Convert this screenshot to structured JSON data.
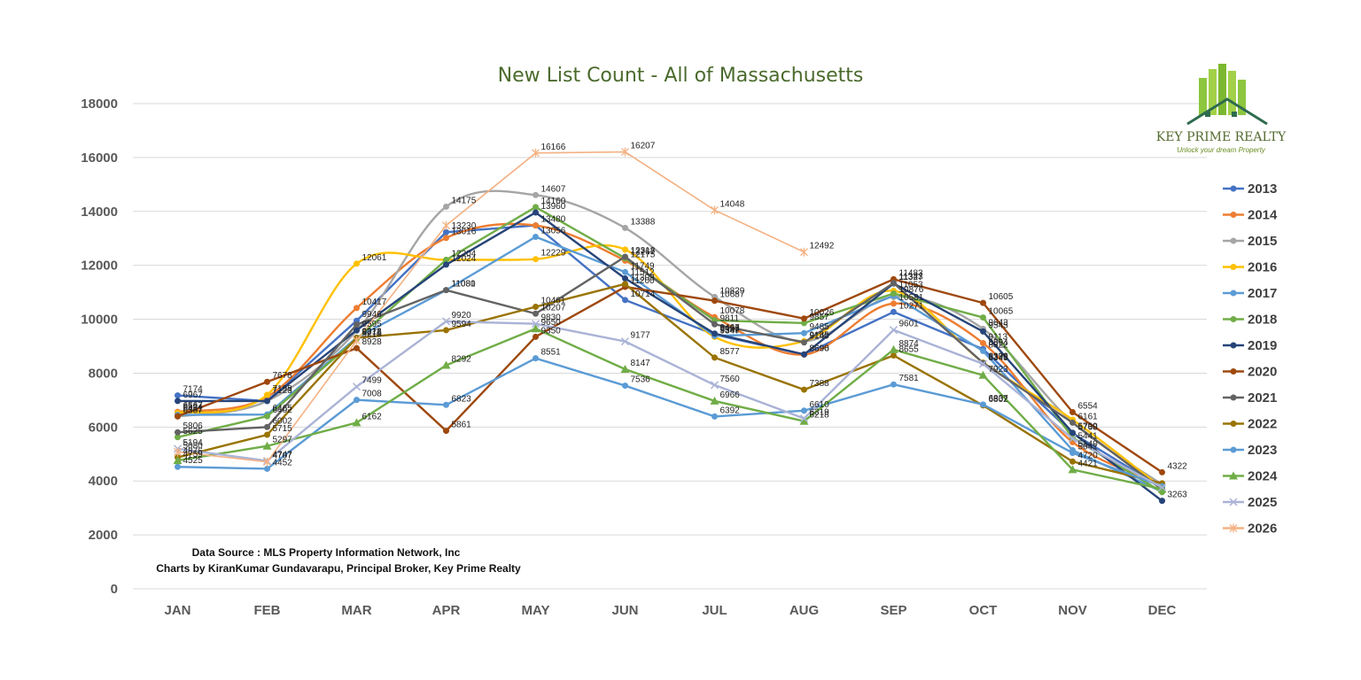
{
  "chart_data": {
    "type": "line",
    "title": "New List Count - All of Massachusetts",
    "xlabel": "",
    "ylabel": "",
    "categories": [
      "JAN",
      "FEB",
      "MAR",
      "APR",
      "MAY",
      "JUN",
      "JUL",
      "AUG",
      "SEP",
      "OCT",
      "NOV",
      "DEC"
    ],
    "ylim": [
      0,
      18000
    ],
    "yticks": [
      0,
      2000,
      4000,
      6000,
      8000,
      10000,
      12000,
      14000,
      16000,
      18000
    ],
    "grid": true,
    "legend_position": "right",
    "series": [
      {
        "name": "2013",
        "color": "#4472c4",
        "marker": "circle",
        "smooth": false,
        "values": [
          7174,
          6967,
          9946,
          13230,
          13480,
          10714,
          9433,
          8690,
          10271,
          8894,
          5768,
          3748
        ],
        "labels": [
          7174,
          null,
          9946,
          13230,
          13480,
          10714,
          9433,
          8690,
          10271,
          8894,
          5768,
          null
        ]
      },
      {
        "name": "2014",
        "color": "#ed7d31",
        "marker": "circle",
        "smooth": true,
        "values": [
          6567,
          7123,
          10417,
          13016,
          13480,
          12175,
          10078,
          8690,
          10581,
          9113,
          5441,
          3904
        ],
        "labels": [
          6567,
          7123,
          10417,
          13016,
          null,
          12175,
          10078,
          null,
          10581,
          9113,
          5441,
          null
        ]
      },
      {
        "name": "2015",
        "color": "#a5a5a5",
        "marker": "circle",
        "smooth": true,
        "values": [
          6387,
          6967,
          9571,
          14175,
          14607,
          13388,
          10829,
          9187,
          10826,
          9643,
          6174,
          3869
        ],
        "labels": [
          6387,
          null,
          null,
          14175,
          14607,
          13388,
          10829,
          null,
          null,
          9643,
          null,
          null
        ]
      },
      {
        "name": "2016",
        "color": "#ffc000",
        "marker": "circle",
        "smooth": true,
        "values": [
          6524,
          7198,
          12061,
          12204,
          12229,
          12585,
          9347,
          9185,
          11053,
          8398,
          6274,
          3740
        ],
        "labels": [
          6524,
          7198,
          12061,
          12204,
          12229,
          null,
          9347,
          9185,
          11053,
          8398,
          null,
          null
        ]
      },
      {
        "name": "2017",
        "color": "#5b9bd5",
        "marker": "circle",
        "smooth": false,
        "values": [
          6451,
          6465,
          9318,
          11081,
          13056,
          11749,
          9382,
          9485,
          10876,
          8822,
          5140,
          3600
        ],
        "labels": [
          6451,
          6465,
          9318,
          11081,
          13056,
          11749,
          9382,
          9485,
          10876,
          8822,
          5140,
          null
        ]
      },
      {
        "name": "2018",
        "color": "#70ad47",
        "marker": "circle",
        "smooth": false,
        "values": [
          5625,
          6402,
          9271,
          12204,
          14160,
          12267,
          9960,
          9857,
          10956,
          10065,
          5608,
          3586
        ],
        "labels": [
          5625,
          6402,
          9271,
          null,
          14160,
          12267,
          null,
          9857,
          null,
          10065,
          null,
          null
        ]
      },
      {
        "name": "2019",
        "color": "#264478",
        "marker": "circle",
        "smooth": false,
        "values": [
          6967,
          6967,
          9595,
          12024,
          13960,
          11512,
          9467,
          8696,
          11327,
          9545,
          5790,
          3263
        ],
        "labels": [
          6967,
          null,
          9595,
          12024,
          13960,
          11512,
          9467,
          8696,
          11327,
          9545,
          5790,
          3263
        ]
      },
      {
        "name": "2020",
        "color": "#9e480e",
        "marker": "circle",
        "smooth": false,
        "values": [
          6402,
          7678,
          8928,
          5861,
          9350,
          11200,
          10687,
          10026,
          11483,
          10605,
          6554,
          4322
        ],
        "labels": [
          null,
          7678,
          8928,
          5861,
          9350,
          11200,
          10687,
          10026,
          11483,
          10605,
          6554,
          4322
        ]
      },
      {
        "name": "2021",
        "color": "#636363",
        "marker": "circle",
        "smooth": false,
        "values": [
          5806,
          6002,
          9800,
          11080,
          10207,
          12318,
          9811,
          9140,
          11343,
          8379,
          6161,
          3685
        ],
        "labels": [
          5806,
          6002,
          null,
          11080,
          10207,
          12318,
          9811,
          9140,
          11343,
          8379,
          6161,
          null
        ]
      },
      {
        "name": "2022",
        "color": "#997300",
        "marker": "circle",
        "smooth": false,
        "values": [
          4876,
          5715,
          9312,
          9594,
          10461,
          11309,
          8577,
          7388,
          8655,
          6802,
          4720,
          3912
        ],
        "labels": [
          4876,
          5715,
          9312,
          9594,
          10461,
          11309,
          8577,
          7388,
          8655,
          6802,
          4720,
          null
        ]
      },
      {
        "name": "2023",
        "color": "#5b9bd5",
        "marker": "circle",
        "smooth": false,
        "values": [
          4525,
          4452,
          7008,
          6823,
          8551,
          7536,
          6392,
          6610,
          7581,
          6837,
          5041,
          3801
        ],
        "labels": [
          4525,
          4452,
          7008,
          6823,
          8551,
          7536,
          6392,
          6610,
          7581,
          6837,
          5041,
          null
        ]
      },
      {
        "name": "2024",
        "color": "#70ad47",
        "marker": "triangle",
        "smooth": false,
        "values": [
          4759,
          5297,
          6162,
          8292,
          9650,
          8147,
          6966,
          6218,
          8874,
          7923,
          4421,
          3700
        ],
        "labels": [
          4759,
          5297,
          6162,
          8292,
          9650,
          8147,
          6966,
          6218,
          8874,
          7923,
          4421,
          null
        ]
      },
      {
        "name": "2025",
        "color": "#aab3d6",
        "marker": "x",
        "smooth": false,
        "values": [
          5194,
          4747,
          7499,
          9920,
          9830,
          9177,
          7560,
          6319,
          9601,
          8345,
          5570,
          3760
        ],
        "labels": [
          5194,
          4747,
          7499,
          9920,
          9830,
          9177,
          7560,
          6319,
          9601,
          8345,
          null,
          null
        ]
      },
      {
        "name": "2026",
        "color": "#f4b183",
        "marker": "star",
        "smooth": false,
        "values": [
          5080,
          4707,
          9210,
          13480,
          16166,
          16207,
          14048,
          12492,
          null,
          null,
          null,
          null
        ],
        "labels": [
          5080,
          4707,
          9210,
          null,
          16166,
          16207,
          14048,
          12492,
          null,
          null,
          null,
          null
        ]
      }
    ]
  },
  "notes": {
    "line1": "Data Source : MLS Property Information Network, Inc",
    "line2": "Charts by KiranKumar Gundavarapu, Principal Broker, Key Prime Realty"
  },
  "logo": {
    "name": "KEY PRIME REALTY",
    "tagline": "Unlock your dream Property",
    "icon": "building-house-icon"
  }
}
